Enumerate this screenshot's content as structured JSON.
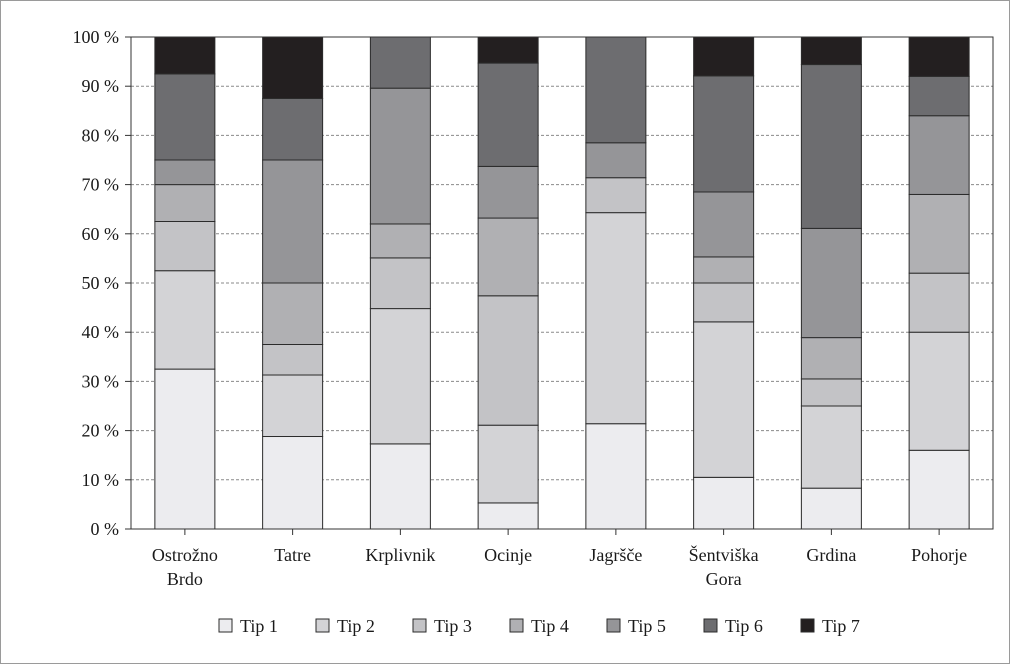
{
  "chart_data": {
    "type": "bar",
    "stacked": true,
    "percent": true,
    "categories": [
      [
        "Ostrožno",
        "Brdo"
      ],
      [
        "Tatre"
      ],
      [
        "Krplivnik"
      ],
      [
        "Ocinje"
      ],
      [
        "Jagršče"
      ],
      [
        "Šentviška",
        "Gora"
      ],
      [
        "Grdina"
      ],
      [
        "Pohorje"
      ]
    ],
    "yticks": [
      "0 %",
      "10 %",
      "20 %",
      "30 %",
      "40 %",
      "50 %",
      "60 %",
      "70 %",
      "80 %",
      "90 %",
      "100 %"
    ],
    "ylim": [
      0,
      100
    ],
    "grid": true,
    "legend_position": "bottom",
    "series": [
      {
        "name": "Tip 1",
        "color": "#ececef",
        "values": [
          32.5,
          18.8,
          17.3,
          5.3,
          21.4,
          10.5,
          8.3,
          16.0
        ]
      },
      {
        "name": "Tip 2",
        "color": "#d3d3d6",
        "values": [
          20.0,
          12.5,
          27.5,
          15.8,
          42.9,
          31.6,
          16.7,
          24.0
        ]
      },
      {
        "name": "Tip 3",
        "color": "#c3c3c6",
        "values": [
          10.0,
          6.2,
          10.3,
          26.3,
          7.1,
          7.9,
          5.5,
          12.0
        ]
      },
      {
        "name": "Tip 4",
        "color": "#b0b0b3",
        "values": [
          7.5,
          12.5,
          6.9,
          15.8,
          0,
          5.3,
          8.4,
          16.0
        ]
      },
      {
        "name": "Tip 5",
        "color": "#959598",
        "values": [
          5.0,
          25.0,
          27.6,
          10.5,
          7.1,
          13.2,
          22.2,
          16.0
        ]
      },
      {
        "name": "Tip 6",
        "color": "#6d6d70",
        "values": [
          17.5,
          12.5,
          10.4,
          21.0,
          21.5,
          23.6,
          33.3,
          8.0
        ]
      },
      {
        "name": "Tip 7",
        "color": "#231f20",
        "values": [
          7.5,
          12.5,
          0,
          5.3,
          0,
          7.9,
          5.6,
          8.0
        ]
      }
    ]
  }
}
